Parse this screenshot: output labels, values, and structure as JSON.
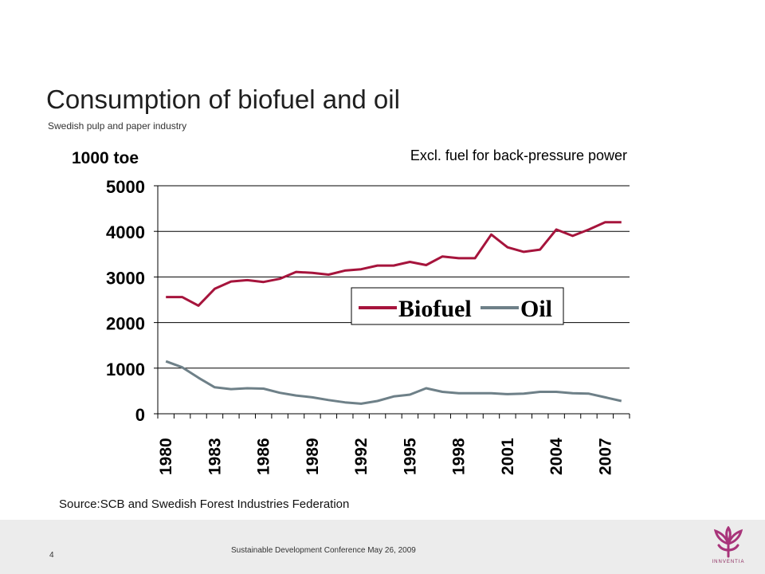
{
  "slide": {
    "title": "Consumption of biofuel and oil",
    "subtitle": "Swedish pulp and paper industry",
    "source": "Source:SCB and Swedish Forest Industries Federation",
    "footer_text": "Sustainable Development Conference May 26, 2009",
    "slide_number": "4",
    "logo_text": "INNVENTIA"
  },
  "colors": {
    "biofuel": "#a6143c",
    "oil": "#6e8088",
    "logo": "#a8347a"
  },
  "chart_data": {
    "type": "line",
    "unit_label": "1000 toe",
    "annotation": "Excl. fuel for back-pressure power",
    "x": [
      1980,
      1981,
      1982,
      1983,
      1984,
      1985,
      1986,
      1987,
      1988,
      1989,
      1990,
      1991,
      1992,
      1993,
      1994,
      1995,
      1996,
      1997,
      1998,
      1999,
      2000,
      2001,
      2002,
      2003,
      2004,
      2005,
      2006,
      2007,
      2008
    ],
    "x_tick_labels": [
      "1980",
      "1983",
      "1986",
      "1989",
      "1992",
      "1995",
      "1998",
      "2001",
      "2004",
      "2007"
    ],
    "y_tick_labels": [
      "0",
      "1000",
      "2000",
      "3000",
      "4000",
      "5000"
    ],
    "ylim": [
      0,
      5000
    ],
    "grid": true,
    "legend_position": "middle-right",
    "series": [
      {
        "name": "Biofuel",
        "values": [
          2560,
          2560,
          2370,
          2740,
          2900,
          2930,
          2890,
          2960,
          3110,
          3090,
          3050,
          3140,
          3170,
          3250,
          3250,
          3330,
          3260,
          3450,
          3410,
          3410,
          3930,
          3650,
          3550,
          3600,
          4040,
          3900,
          4040,
          4200,
          4200
        ]
      },
      {
        "name": "Oil",
        "values": [
          1150,
          1020,
          790,
          580,
          540,
          560,
          550,
          460,
          400,
          360,
          300,
          250,
          220,
          280,
          380,
          420,
          560,
          480,
          450,
          450,
          450,
          430,
          440,
          480,
          480,
          450,
          440,
          360,
          280
        ]
      }
    ]
  }
}
